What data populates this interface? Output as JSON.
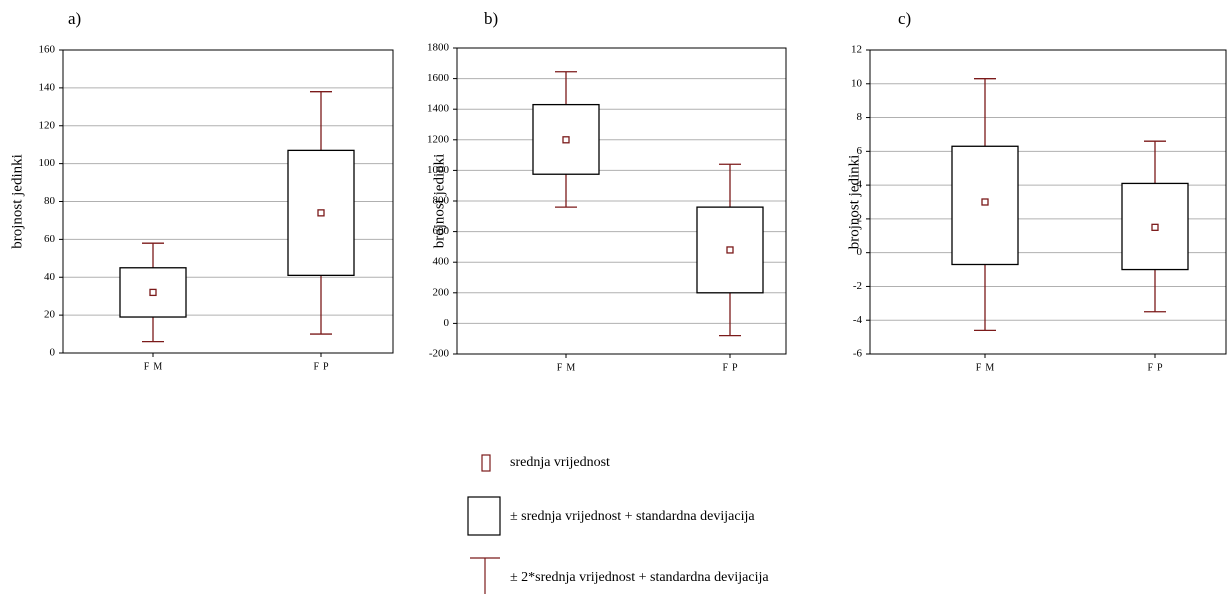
{
  "chart_data": [
    {
      "type": "box",
      "title": "a)",
      "ylabel": "brojnost jedinki",
      "categories": [
        "FM",
        "FP"
      ],
      "mean": [
        32,
        74
      ],
      "sd_low": [
        19,
        41
      ],
      "sd_high": [
        45,
        107
      ],
      "whisker_low": [
        6,
        10
      ],
      "whisker_high": [
        58,
        138
      ],
      "ylim": [
        0,
        160
      ],
      "yticks": [
        0,
        20,
        40,
        60,
        80,
        100,
        120,
        140,
        160
      ],
      "grid": true,
      "color": "#7b1a1a",
      "box_color": "#000000"
    },
    {
      "type": "box",
      "title": "b)",
      "ylabel": "brojnost jedinki",
      "categories": [
        "FM",
        "FP"
      ],
      "mean": [
        1200,
        480
      ],
      "sd_low": [
        975,
        200
      ],
      "sd_high": [
        1430,
        760
      ],
      "whisker_low": [
        760,
        -80
      ],
      "whisker_high": [
        1645,
        1040
      ],
      "ylim": [
        -200,
        1800
      ],
      "yticks": [
        -200,
        0,
        200,
        400,
        600,
        800,
        1000,
        1200,
        1400,
        1600,
        1800
      ],
      "grid": true,
      "color": "#7b1a1a",
      "box_color": "#000000"
    },
    {
      "type": "box",
      "title": "c)",
      "ylabel": "brojnost jedinki",
      "categories": [
        "FM",
        "FP"
      ],
      "mean": [
        3.0,
        1.5
      ],
      "sd_low": [
        -0.7,
        -1.0
      ],
      "sd_high": [
        6.3,
        4.1
      ],
      "whisker_low": [
        -4.6,
        -3.5
      ],
      "whisker_high": [
        10.3,
        6.6
      ],
      "ylim": [
        -6,
        12
      ],
      "yticks": [
        -6,
        -4,
        -2,
        0,
        2,
        4,
        6,
        8,
        10,
        12
      ],
      "grid": true,
      "color": "#7b1a1a",
      "box_color": "#000000"
    }
  ],
  "legend": {
    "entries": [
      "srednja vrijednost",
      "± srednja vrijednost + standardna devijacija",
      "± 2*srednja vrijednost + standardna devijacija"
    ]
  }
}
